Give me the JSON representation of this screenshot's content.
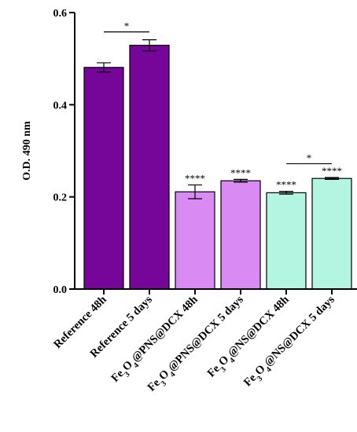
{
  "chart_data": {
    "type": "bar",
    "title": "",
    "xlabel": "",
    "ylabel": "O.D. 490 nm",
    "ylim": [
      0,
      0.6
    ],
    "yticks": [
      "0.0",
      "0.2",
      "0.4",
      "0.6"
    ],
    "ytick_values": [
      0,
      0.2,
      0.4,
      0.6
    ],
    "grid": false,
    "categories": [
      {
        "parts": [
          [
            "Reference 48h",
            false
          ]
        ],
        "label": "Reference 48h"
      },
      {
        "parts": [
          [
            "Reference 5 days",
            false
          ]
        ],
        "label": "Reference 5 days"
      },
      {
        "parts": [
          [
            "Fe",
            false
          ],
          [
            "3",
            true
          ],
          [
            "O",
            false
          ],
          [
            "4",
            true
          ],
          [
            "@PNS@DCX 48h",
            false
          ]
        ],
        "label": "Fe3O4@PNS@DCX 48h"
      },
      {
        "parts": [
          [
            "Fe",
            false
          ],
          [
            "3",
            true
          ],
          [
            "O",
            false
          ],
          [
            "4",
            true
          ],
          [
            "@PNS@DCX 5 days",
            false
          ]
        ],
        "label": "Fe3O4@PNS@DCX 5 days"
      },
      {
        "parts": [
          [
            "Fe",
            false
          ],
          [
            "3",
            true
          ],
          [
            "O",
            false
          ],
          [
            "4",
            true
          ],
          [
            "@NS@DCX 48h",
            false
          ]
        ],
        "label": "Fe3O4@NS@DCX 48h"
      },
      {
        "parts": [
          [
            "Fe",
            false
          ],
          [
            "3",
            true
          ],
          [
            "O",
            false
          ],
          [
            "4",
            true
          ],
          [
            "@NS@DCX 5 days",
            false
          ]
        ],
        "label": "Fe3O4@NS@DCX 5 days"
      }
    ],
    "values": [
      0.481,
      0.529,
      0.211,
      0.235,
      0.209,
      0.24
    ],
    "errors": [
      0.01,
      0.012,
      0.015,
      0.003,
      0.003,
      0.002
    ],
    "colors": [
      "#76069A",
      "#76069A",
      "#DA8AF3",
      "#DA8AF3",
      "#B3F5E0",
      "#B3F5E0"
    ],
    "bar_significance": [
      "",
      "",
      "****",
      "****",
      "****",
      "****"
    ],
    "comparisons": [
      {
        "from": 0,
        "to": 1,
        "label": "*",
        "y": 0.558
      },
      {
        "from": 4,
        "to": 5,
        "label": "*",
        "y": 0.272
      }
    ]
  }
}
